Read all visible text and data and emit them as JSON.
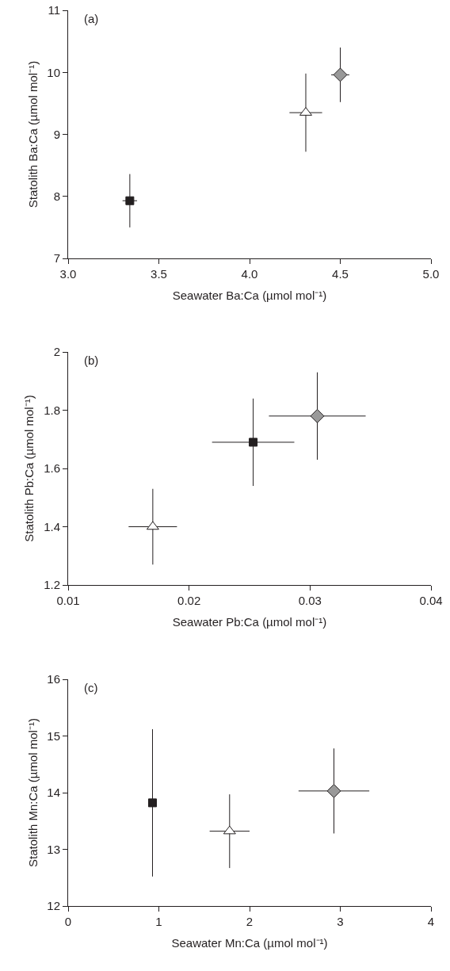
{
  "chart_data": [
    {
      "type": "scatter",
      "xlabel": "Seawater Ba:Ca (µmol mol⁻¹)",
      "ylabel": "Statolith Ba:Ca (µmol mol⁻¹)",
      "annotations": [
        "(a)"
      ],
      "xlim": [
        3.0,
        5.0
      ],
      "xticks": [
        {
          "value": 3,
          "label": "3.0"
        },
        {
          "value": 3.5,
          "label": "3.5"
        },
        {
          "value": 4,
          "label": "4.0"
        },
        {
          "value": 4.5,
          "label": "4.5"
        },
        {
          "value": 5,
          "label": "5.0"
        }
      ],
      "ylim": [
        7,
        11
      ],
      "yticks": [
        7,
        8,
        9,
        10,
        11
      ],
      "series": [
        {
          "color": "#231f20",
          "marker": "square",
          "x": [
            3.34
          ],
          "values": [
            7.93
          ],
          "errors": [
            0.43
          ],
          "xerrors": [
            0.04
          ]
        },
        {
          "color": "#ffffff",
          "marker": "triangle",
          "x": [
            4.31
          ],
          "values": [
            9.35
          ],
          "errors": [
            0.63
          ],
          "xerrors": [
            0.09
          ]
        },
        {
          "color": "#999999",
          "marker": "diamond",
          "x": [
            4.5
          ],
          "values": [
            9.96
          ],
          "errors": [
            0.44
          ],
          "xerrors": [
            0.05
          ]
        }
      ]
    },
    {
      "type": "scatter",
      "xlabel": "Seawater Pb:Ca (µmol mol⁻¹)",
      "ylabel": "Statolith Pb:Ca (µmol mol⁻¹)",
      "annotations": [
        "(b)"
      ],
      "xlim": [
        0.01,
        0.04
      ],
      "xticks": [
        0.01,
        0.02,
        0.03,
        0.04
      ],
      "ylim": [
        1.2,
        2
      ],
      "yticks": [
        1.2,
        1.4,
        1.6,
        1.8,
        2
      ],
      "series": [
        {
          "color": "#231f20",
          "marker": "square",
          "x": [
            0.0253
          ],
          "values": [
            1.69
          ],
          "errors": [
            0.15
          ],
          "xerrors": [
            0.0034
          ]
        },
        {
          "color": "#ffffff",
          "marker": "triangle",
          "x": [
            0.017
          ],
          "values": [
            1.4
          ],
          "errors": [
            0.13
          ],
          "xerrors": [
            0.002
          ]
        },
        {
          "color": "#999999",
          "marker": "diamond",
          "x": [
            0.0306
          ],
          "values": [
            1.78
          ],
          "errors": [
            0.15
          ],
          "xerrors": [
            0.004
          ]
        }
      ]
    },
    {
      "type": "scatter",
      "xlabel": "Seawater Mn:Ca (µmol mol⁻¹)",
      "ylabel": "Statolith Mn:Ca (µmol mol⁻¹)",
      "annotations": [
        "(c)"
      ],
      "xlim": [
        0,
        4
      ],
      "xticks": [
        0,
        1,
        2,
        3,
        4
      ],
      "ylim": [
        12,
        16
      ],
      "yticks": [
        12,
        13,
        14,
        15,
        16
      ],
      "series": [
        {
          "color": "#231f20",
          "marker": "square",
          "x": [
            0.93
          ],
          "values": [
            13.82
          ],
          "errors": [
            1.3
          ],
          "xerrors": [
            null
          ]
        },
        {
          "color": "#ffffff",
          "marker": "triangle",
          "x": [
            1.78
          ],
          "values": [
            13.32
          ],
          "errors": [
            0.65
          ],
          "xerrors": [
            0.22
          ]
        },
        {
          "color": "#999999",
          "marker": "diamond",
          "x": [
            2.93
          ],
          "values": [
            14.03
          ],
          "errors": [
            0.75
          ],
          "xerrors": [
            0.39
          ]
        }
      ]
    }
  ]
}
